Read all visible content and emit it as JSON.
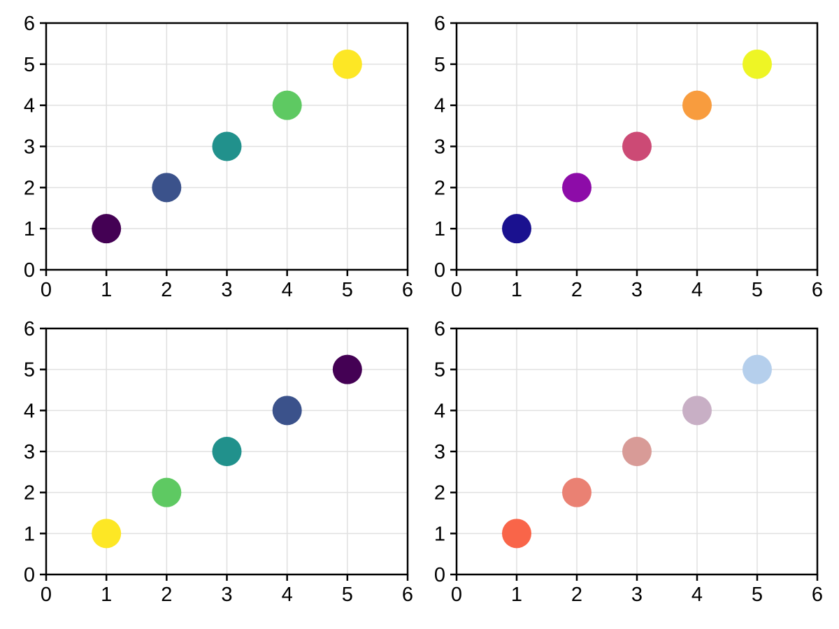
{
  "figure": {
    "background": "#ffffff",
    "grid_color": "#e0e0e0",
    "spine_color": "#000000",
    "tick_color": "#000000",
    "tick_label_color": "#000000",
    "grid": true,
    "layout": "2x2 grid of scatter subplots"
  },
  "chart_data": [
    {
      "type": "scatter",
      "name": "scatter-viridis",
      "position": "top-left",
      "x": [
        1,
        2,
        3,
        4,
        5
      ],
      "y": [
        1,
        2,
        3,
        4,
        5
      ],
      "point_colors": [
        "#440154",
        "#3b528b",
        "#21918c",
        "#5ec962",
        "#fde725"
      ],
      "xlim": [
        0,
        6
      ],
      "ylim": [
        0,
        6
      ],
      "xticks": [
        0,
        1,
        2,
        3,
        4,
        5,
        6
      ],
      "yticks": [
        0,
        1,
        2,
        3,
        4,
        5,
        6
      ],
      "grid": true,
      "legend": false,
      "title": "",
      "xlabel": "",
      "ylabel": "",
      "marker_size_px": 42
    },
    {
      "type": "scatter",
      "name": "scatter-plasma",
      "position": "top-right",
      "x": [
        1,
        2,
        3,
        4,
        5
      ],
      "y": [
        1,
        2,
        3,
        4,
        5
      ],
      "point_colors": [
        "#1a118f",
        "#8d0ca8",
        "#cc4a75",
        "#f89c3e",
        "#eef525"
      ],
      "xlim": [
        0,
        6
      ],
      "ylim": [
        0,
        6
      ],
      "xticks": [
        0,
        1,
        2,
        3,
        4,
        5,
        6
      ],
      "yticks": [
        0,
        1,
        2,
        3,
        4,
        5,
        6
      ],
      "grid": true,
      "legend": false,
      "title": "",
      "xlabel": "",
      "ylabel": "",
      "marker_size_px": 42
    },
    {
      "type": "scatter",
      "name": "scatter-viridis-reversed",
      "position": "bottom-left",
      "x": [
        1,
        2,
        3,
        4,
        5
      ],
      "y": [
        1,
        2,
        3,
        4,
        5
      ],
      "point_colors": [
        "#fde725",
        "#5ec962",
        "#21918c",
        "#3b528b",
        "#440154"
      ],
      "xlim": [
        0,
        6
      ],
      "ylim": [
        0,
        6
      ],
      "xticks": [
        0,
        1,
        2,
        3,
        4,
        5,
        6
      ],
      "yticks": [
        0,
        1,
        2,
        3,
        4,
        5,
        6
      ],
      "grid": true,
      "legend": false,
      "title": "",
      "xlabel": "",
      "ylabel": "",
      "marker_size_px": 42
    },
    {
      "type": "scatter",
      "name": "scatter-warm-to-cool-fade",
      "position": "bottom-right",
      "x": [
        1,
        2,
        3,
        4,
        5
      ],
      "y": [
        1,
        2,
        3,
        4,
        5
      ],
      "point_colors": [
        "#f96549",
        "#ea8173",
        "#d89b97",
        "#c8afc5",
        "#b5cfec"
      ],
      "xlim": [
        0,
        6
      ],
      "ylim": [
        0,
        6
      ],
      "xticks": [
        0,
        1,
        2,
        3,
        4,
        5,
        6
      ],
      "yticks": [
        0,
        1,
        2,
        3,
        4,
        5,
        6
      ],
      "grid": true,
      "legend": false,
      "title": "",
      "xlabel": "",
      "ylabel": "",
      "marker_size_px": 42
    }
  ]
}
